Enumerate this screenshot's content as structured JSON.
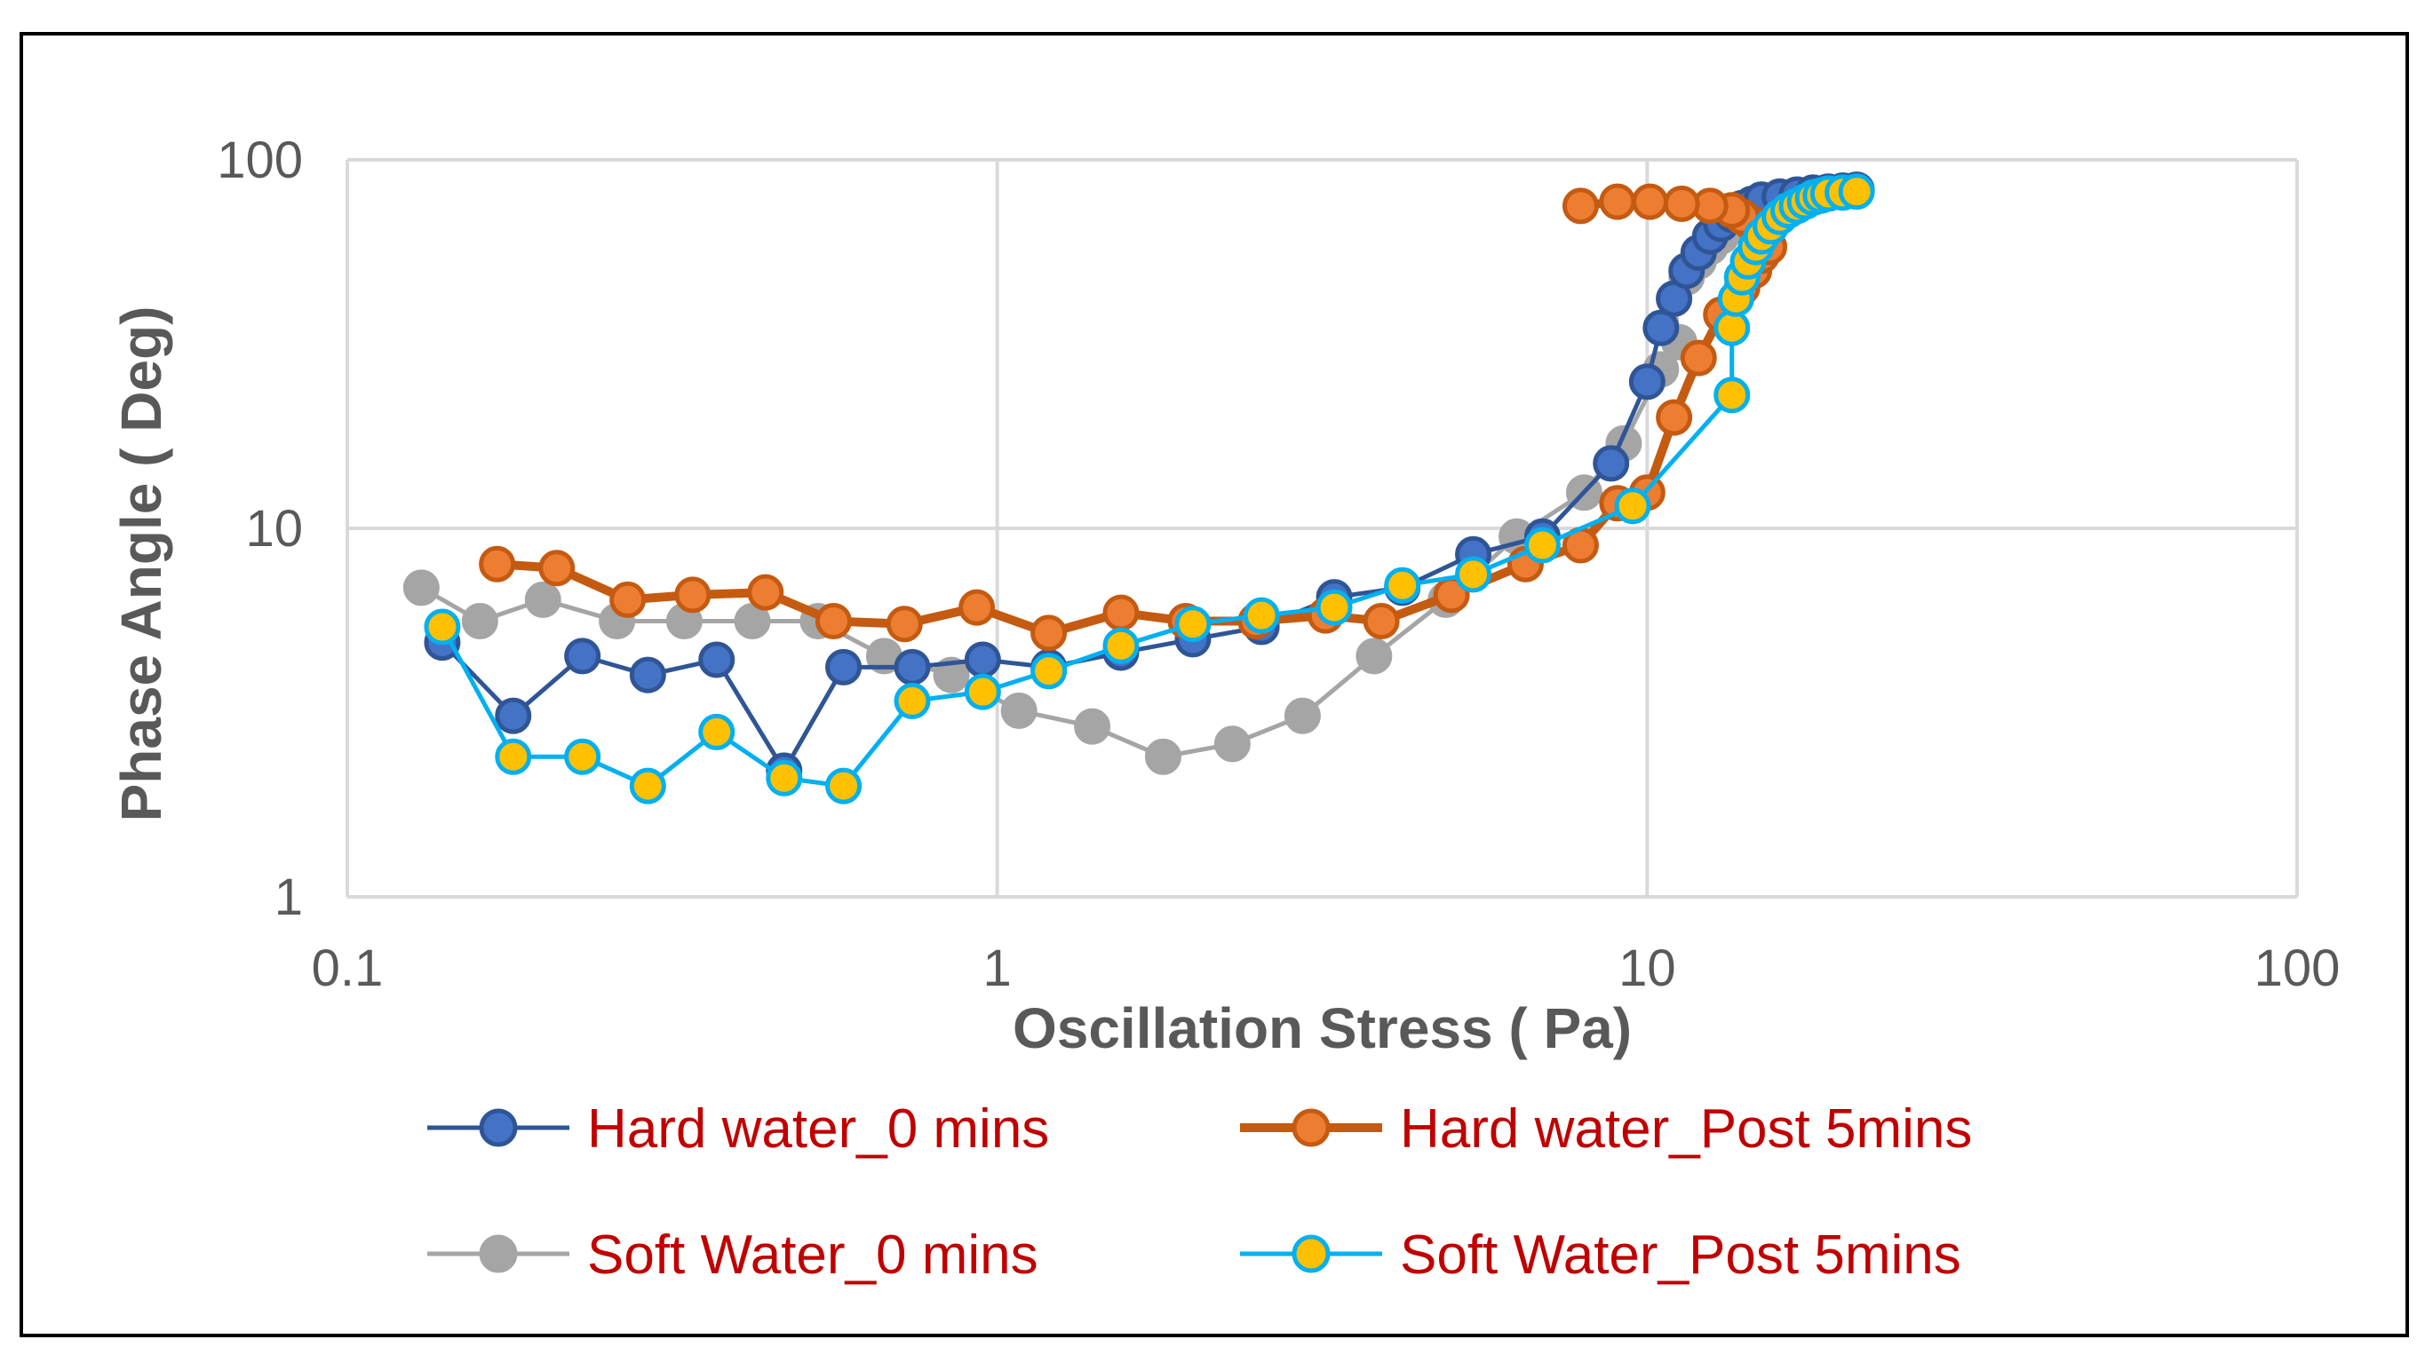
{
  "chart_data": {
    "type": "scatter",
    "x_scale": "log",
    "y_scale": "log",
    "xlabel": "Oscillation Stress ( Pa)",
    "ylabel": "Phase Angle ( Deg)",
    "xlim": [
      0.1,
      100
    ],
    "ylim": [
      1,
      100
    ],
    "x_ticks": [
      0.1,
      1,
      10,
      100
    ],
    "x_tick_labels": [
      "0.1",
      "1",
      "10",
      "100"
    ],
    "y_ticks": [
      1,
      10,
      100
    ],
    "y_tick_labels": [
      "1",
      "10",
      "100"
    ],
    "legend_position": "bottom",
    "legend_text_color": "#C00000",
    "series": [
      {
        "name": "Hard water_0 mins",
        "line_color": "#2F5597",
        "marker_fill": "#4472C4",
        "marker_edge": "#2F5597",
        "points": [
          [
            0.14,
            4.9
          ],
          [
            0.18,
            3.1
          ],
          [
            0.23,
            4.5
          ],
          [
            0.29,
            4.0
          ],
          [
            0.37,
            4.4
          ],
          [
            0.47,
            2.2
          ],
          [
            0.58,
            4.2
          ],
          [
            0.74,
            4.2
          ],
          [
            0.95,
            4.4
          ],
          [
            1.2,
            4.2
          ],
          [
            1.55,
            4.6
          ],
          [
            2.0,
            5.0
          ],
          [
            2.55,
            5.4
          ],
          [
            3.3,
            6.5
          ],
          [
            4.2,
            6.9
          ],
          [
            5.4,
            8.5
          ],
          [
            6.9,
            9.5
          ],
          [
            8.8,
            15.0
          ],
          [
            10.0,
            25.0
          ],
          [
            10.5,
            35.0
          ],
          [
            11.0,
            42.0
          ],
          [
            11.5,
            50.0
          ],
          [
            12.0,
            56.0
          ],
          [
            12.5,
            62.0
          ],
          [
            13.0,
            67.0
          ],
          [
            13.5,
            71.0
          ],
          [
            14.0,
            74.0
          ],
          [
            14.5,
            76.0
          ],
          [
            15.0,
            78.0
          ],
          [
            16.0,
            79.5
          ],
          [
            17.0,
            80.5
          ],
          [
            18.0,
            81.5
          ],
          [
            19.0,
            82.0
          ],
          [
            20.0,
            82.5
          ],
          [
            21.0,
            83.0
          ]
        ]
      },
      {
        "name": "Hard water_Post 5mins",
        "line_color": "#C55A11",
        "marker_fill": "#ED7D31",
        "marker_edge": "#C55A11",
        "points": [
          [
            0.17,
            8.0
          ],
          [
            0.21,
            7.8
          ],
          [
            0.27,
            6.4
          ],
          [
            0.34,
            6.6
          ],
          [
            0.44,
            6.7
          ],
          [
            0.56,
            5.6
          ],
          [
            0.72,
            5.5
          ],
          [
            0.93,
            6.1
          ],
          [
            1.2,
            5.2
          ],
          [
            1.55,
            5.9
          ],
          [
            1.95,
            5.6
          ],
          [
            2.5,
            5.6
          ],
          [
            3.2,
            5.8
          ],
          [
            3.9,
            5.6
          ],
          [
            5.0,
            6.6
          ],
          [
            6.5,
            8.0
          ],
          [
            7.9,
            9.0
          ],
          [
            9.0,
            11.7
          ],
          [
            10.0,
            12.5
          ],
          [
            11.0,
            20.0
          ],
          [
            12.0,
            29.0
          ],
          [
            13.0,
            38.0
          ],
          [
            14.0,
            45.0
          ],
          [
            14.6,
            50.0
          ],
          [
            15.0,
            55.0
          ],
          [
            15.4,
            58.0
          ],
          [
            15.0,
            63.0
          ],
          [
            14.5,
            67.0
          ],
          [
            14.0,
            70.0
          ],
          [
            13.5,
            73.0
          ],
          [
            12.5,
            75.0
          ],
          [
            11.3,
            76.0
          ],
          [
            10.1,
            77.0
          ],
          [
            9.0,
            77.0
          ],
          [
            7.9,
            75.0
          ]
        ]
      },
      {
        "name": "Soft Water_0 mins",
        "line_color": "#A5A5A5",
        "marker_fill": "#A5A5A5",
        "marker_edge": "#A5A5A5",
        "points": [
          [
            0.13,
            6.9
          ],
          [
            0.16,
            5.6
          ],
          [
            0.2,
            6.4
          ],
          [
            0.26,
            5.6
          ],
          [
            0.33,
            5.6
          ],
          [
            0.42,
            5.6
          ],
          [
            0.53,
            5.6
          ],
          [
            0.67,
            4.5
          ],
          [
            0.85,
            4.0
          ],
          [
            1.08,
            3.2
          ],
          [
            1.4,
            2.9
          ],
          [
            1.8,
            2.4
          ],
          [
            2.3,
            2.6
          ],
          [
            2.95,
            3.1
          ],
          [
            3.8,
            4.5
          ],
          [
            4.9,
            6.4
          ],
          [
            6.3,
            9.5
          ],
          [
            8.0,
            12.5
          ],
          [
            9.2,
            17.0
          ],
          [
            10.5,
            27.0
          ],
          [
            11.2,
            32.0
          ],
          [
            11.0,
            42.0
          ],
          [
            11.5,
            48.0
          ],
          [
            12.0,
            53.0
          ],
          [
            12.5,
            58.0
          ],
          [
            13.0,
            62.0
          ],
          [
            13.5,
            66.0
          ],
          [
            14.0,
            70.0
          ],
          [
            14.5,
            73.0
          ],
          [
            15.0,
            75.0
          ],
          [
            16.0,
            77.0
          ],
          [
            17.0,
            79.0
          ],
          [
            18.0,
            80.0
          ],
          [
            19.0,
            81.0
          ],
          [
            20.0,
            82.0
          ]
        ]
      },
      {
        "name": "Soft Water_Post 5mins",
        "line_color": "#00B0F0",
        "marker_fill": "#FFC000",
        "marker_edge": "#00B0F0",
        "points": [
          [
            0.14,
            5.4
          ],
          [
            0.18,
            2.4
          ],
          [
            0.23,
            2.4
          ],
          [
            0.29,
            2.0
          ],
          [
            0.37,
            2.8
          ],
          [
            0.47,
            2.1
          ],
          [
            0.58,
            2.0
          ],
          [
            0.74,
            3.4
          ],
          [
            0.95,
            3.6
          ],
          [
            1.2,
            4.1
          ],
          [
            1.55,
            4.8
          ],
          [
            2.0,
            5.5
          ],
          [
            2.55,
            5.8
          ],
          [
            3.3,
            6.1
          ],
          [
            4.2,
            7.0
          ],
          [
            5.4,
            7.5
          ],
          [
            6.9,
            9.0
          ],
          [
            9.5,
            11.5
          ],
          [
            13.5,
            23.0
          ],
          [
            13.5,
            35.0
          ],
          [
            13.7,
            42.0
          ],
          [
            14.0,
            48.0
          ],
          [
            14.3,
            53.0
          ],
          [
            14.7,
            58.0
          ],
          [
            15.0,
            62.0
          ],
          [
            15.5,
            66.0
          ],
          [
            16.0,
            70.0
          ],
          [
            16.5,
            73.0
          ],
          [
            17.0,
            75.0
          ],
          [
            17.5,
            77.0
          ],
          [
            18.0,
            79.0
          ],
          [
            18.5,
            80.0
          ],
          [
            19.0,
            81.0
          ],
          [
            20.0,
            81.5
          ],
          [
            21.0,
            82.0
          ]
        ]
      }
    ]
  }
}
